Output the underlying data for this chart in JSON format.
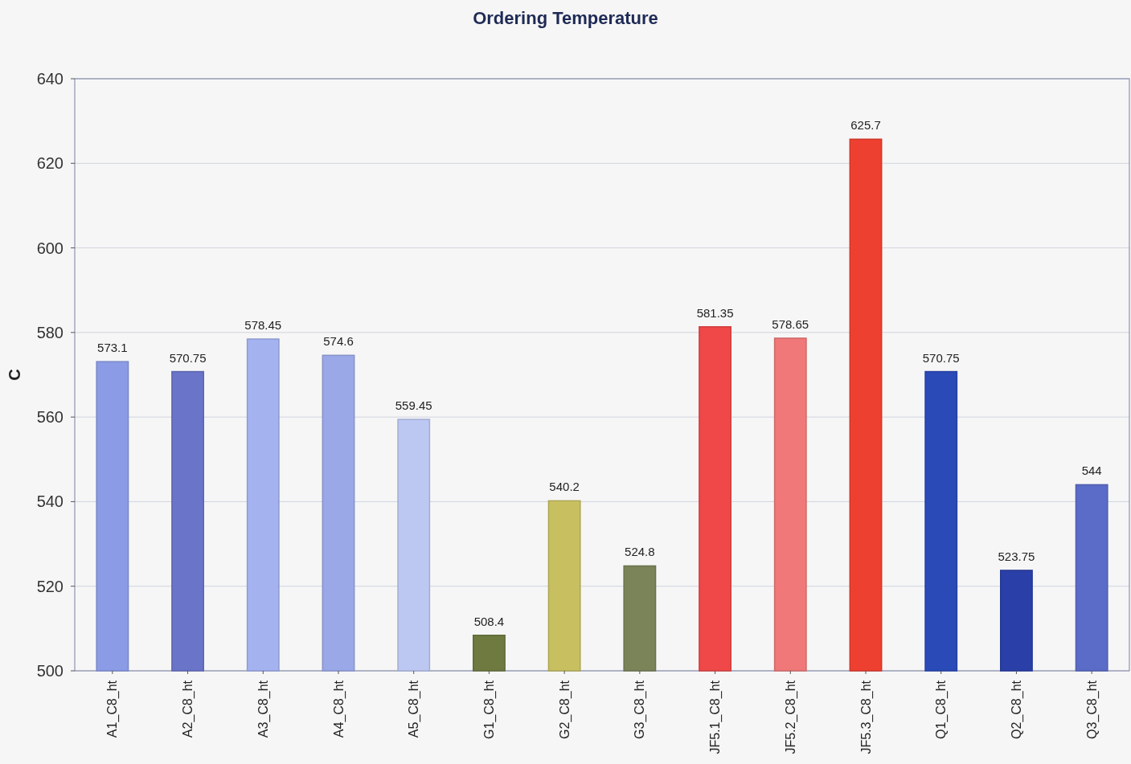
{
  "chart_data": {
    "type": "bar",
    "title": "Ordering Temperature",
    "ylabel": "C",
    "categories": [
      "A1_C8_ht",
      "A2_C8_ht",
      "A3_C8_ht",
      "A4_C8_ht",
      "A5_C8_ht",
      "G1_C8_ht",
      "G2_C8_ht",
      "G3_C8_ht",
      "JF5.1_C8_ht",
      "JF5.2_C8_ht",
      "JF5.3_C8_ht",
      "Q1_C8_ht",
      "Q2_C8_ht",
      "Q3_C8_ht"
    ],
    "values": [
      573.1,
      570.75,
      578.45,
      574.6,
      559.45,
      508.4,
      540.2,
      524.8,
      581.35,
      578.65,
      625.7,
      570.75,
      523.75,
      544
    ],
    "colors": [
      "#8b9be6",
      "#6a74c8",
      "#a4b2f0",
      "#9aa8e8",
      "#bcc8f2",
      "#6e7a40",
      "#c8c060",
      "#7a8458",
      "#f04848",
      "#f07878",
      "#ee4030",
      "#2a4ab8",
      "#2a40a8",
      "#5a6cc8"
    ],
    "ylim": [
      500,
      640
    ],
    "yticks": [
      500,
      520,
      540,
      560,
      580,
      600,
      620,
      640
    ],
    "grid": "y",
    "data_labels": true
  }
}
